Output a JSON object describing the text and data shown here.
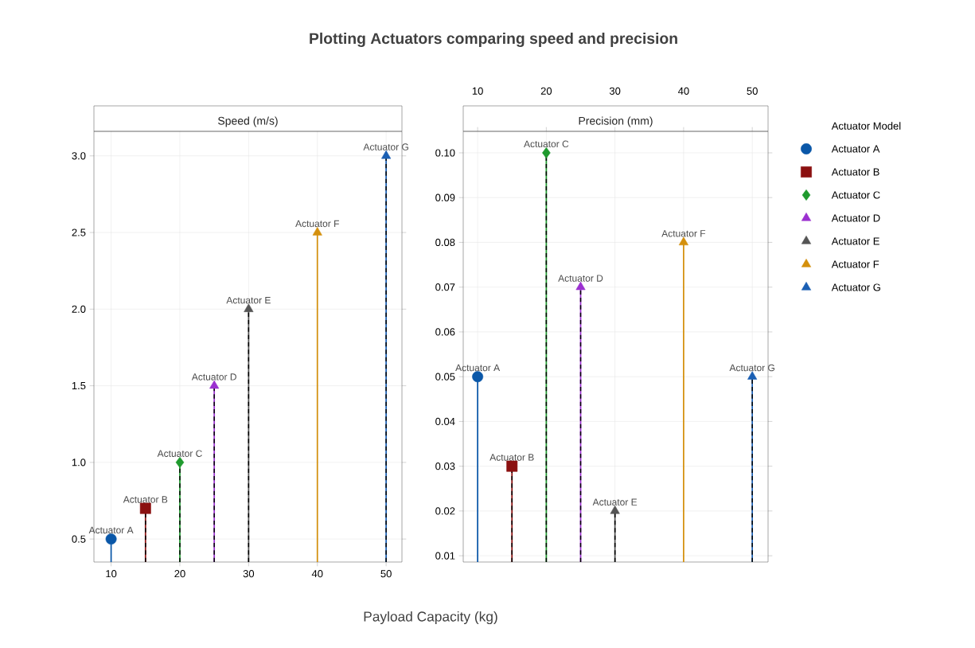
{
  "chart_data": [
    {
      "type": "lollipop",
      "title": "Plotting Actuators comparing speed and precision",
      "ylabel": "Speed (m/s)",
      "xlabel": "Payload Capacity (kg)",
      "xlim": [
        7.5,
        52.3
      ],
      "xticks": [
        10,
        20,
        30,
        40,
        50
      ],
      "ylim": [
        0.35,
        3.16
      ],
      "yticks": [
        {
          "value": 0.5,
          "label": "0.5"
        },
        {
          "value": 1.0,
          "label": "1.0"
        },
        {
          "value": 1.5,
          "label": "1.5"
        },
        {
          "value": 2.0,
          "label": "2.0"
        },
        {
          "value": 2.5,
          "label": "2.5"
        },
        {
          "value": 3.0,
          "label": "3.0"
        }
      ],
      "grid": true,
      "series": [
        {
          "color": "#0a57a8",
          "marker": "circle",
          "line_style": "solid",
          "x": [
            10
          ],
          "values": [
            0.5
          ]
        },
        {
          "color": "#8b1010",
          "marker": "square",
          "line_style": "dashed",
          "x": [
            15
          ],
          "values": [
            0.7
          ]
        },
        {
          "color": "#1f9a2e",
          "marker": "diamond",
          "line_style": "dashed",
          "x": [
            20
          ],
          "values": [
            1.0
          ]
        },
        {
          "color": "#9b30d0",
          "marker": "triangle",
          "line_style": "dashed",
          "x": [
            25
          ],
          "values": [
            1.5
          ]
        },
        {
          "color": "#555555",
          "marker": "triangle",
          "line_style": "dashed",
          "x": [
            30
          ],
          "values": [
            2.0
          ]
        },
        {
          "color": "#d4900c",
          "marker": "triangle",
          "line_style": "solid",
          "x": [
            40
          ],
          "values": [
            2.5
          ]
        },
        {
          "color": "#1a5fb4",
          "marker": "triangle",
          "line_style": "dashed",
          "x": [
            50
          ],
          "values": [
            3.0
          ]
        }
      ],
      "annotations": [
        {
          "text": "Actuator A",
          "x": 10,
          "y": 0.5
        },
        {
          "text": "Actuator B",
          "x": 15,
          "y": 0.7
        },
        {
          "text": "Actuator C",
          "x": 20,
          "y": 1.0
        },
        {
          "text": "Actuator D",
          "x": 25,
          "y": 1.5
        },
        {
          "text": "Actuator E",
          "x": 30,
          "y": 2.0
        },
        {
          "text": "Actuator F",
          "x": 40,
          "y": 2.5
        },
        {
          "text": "Actuator G",
          "x": 50,
          "y": 3.0
        }
      ]
    },
    {
      "type": "lollipop",
      "ylabel": "Precision (mm)",
      "legend_title": "Actuator Model",
      "legend": "right",
      "xlim": [
        7.9,
        52.3
      ],
      "xticks": [
        10,
        20,
        30,
        40,
        50
      ],
      "ylim": [
        0.0086,
        0.1048
      ],
      "yticks": [
        {
          "value": 0.01,
          "label": "0.01"
        },
        {
          "value": 0.02,
          "label": "0.02"
        },
        {
          "value": 0.03,
          "label": "0.03"
        },
        {
          "value": 0.04,
          "label": "0.04"
        },
        {
          "value": 0.05,
          "label": "0.05"
        },
        {
          "value": 0.06,
          "label": "0.06"
        },
        {
          "value": 0.07,
          "label": "0.07"
        },
        {
          "value": 0.08,
          "label": "0.08"
        },
        {
          "value": 0.09,
          "label": "0.09"
        },
        {
          "value": 0.1,
          "label": "0.10"
        }
      ],
      "grid": true,
      "series": [
        {
          "name": "Actuator A",
          "color": "#0a57a8",
          "marker": "circle",
          "line_style": "solid",
          "x": [
            10
          ],
          "values": [
            0.05
          ]
        },
        {
          "name": "Actuator B",
          "color": "#8b1010",
          "marker": "square",
          "line_style": "dashed",
          "x": [
            15
          ],
          "values": [
            0.03
          ]
        },
        {
          "name": "Actuator C",
          "color": "#1f9a2e",
          "marker": "diamond",
          "line_style": "dashed",
          "x": [
            20
          ],
          "values": [
            0.1
          ]
        },
        {
          "name": "Actuator D",
          "color": "#9b30d0",
          "marker": "triangle",
          "line_style": "dashed",
          "x": [
            25
          ],
          "values": [
            0.07
          ]
        },
        {
          "name": "Actuator E",
          "color": "#555555",
          "marker": "triangle",
          "line_style": "dashed",
          "x": [
            30
          ],
          "values": [
            0.02
          ]
        },
        {
          "name": "Actuator F",
          "color": "#d4900c",
          "marker": "triangle",
          "line_style": "solid",
          "x": [
            40
          ],
          "values": [
            0.08
          ]
        },
        {
          "name": "Actuator G",
          "color": "#1a5fb4",
          "marker": "triangle",
          "line_style": "dashed",
          "x": [
            50
          ],
          "values": [
            0.05
          ]
        }
      ],
      "annotations": [
        {
          "text": "Actuator A",
          "x": 10,
          "y": 0.05
        },
        {
          "text": "Actuator B",
          "x": 15,
          "y": 0.03
        },
        {
          "text": "Actuator C",
          "x": 20,
          "y": 0.1
        },
        {
          "text": "Actuator D",
          "x": 25,
          "y": 0.07
        },
        {
          "text": "Actuator E",
          "x": 30,
          "y": 0.02
        },
        {
          "text": "Actuator F",
          "x": 40,
          "y": 0.08
        },
        {
          "text": "Actuator G",
          "x": 50,
          "y": 0.05
        }
      ]
    }
  ]
}
